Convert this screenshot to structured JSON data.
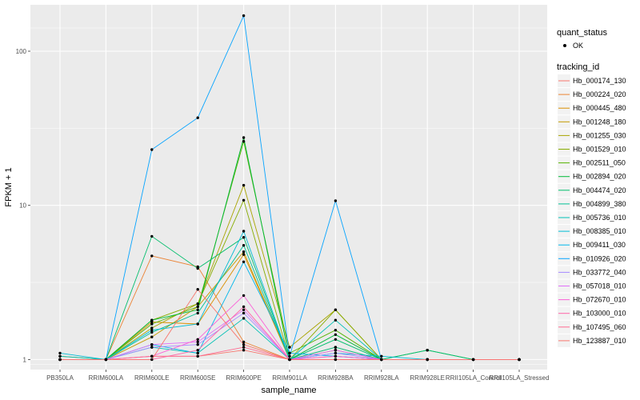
{
  "chart_data": {
    "type": "line",
    "x": [
      "PB350LA",
      "RRIM600LA",
      "RRIM600LE",
      "RRIM600SE",
      "RRIM600PE",
      "RRIM901LA",
      "RRIM928BA",
      "RRIM928LA",
      "RRIM928LE",
      "RRII105LA_Control",
      "RRII105LA_Stressed"
    ],
    "xlabel": "sample_name",
    "ylabel": "FPKM + 1",
    "yscale": "log",
    "ylim": [
      0.86,
      200
    ],
    "yticks": [
      1,
      10,
      100
    ],
    "ytick_labels": [
      "1",
      "10",
      "100"
    ],
    "grid": true,
    "legend_position": "right",
    "marker_legend": {
      "title": "quant_status",
      "label": "OK"
    },
    "color_legend_title": "tracking_id",
    "series": [
      {
        "name": "Hb_000174_130",
        "color": "#F8766D",
        "values": [
          1.0,
          1.0,
          1.05,
          1.05,
          1.15,
          1.0,
          1.05,
          1.0,
          1.0,
          1.0,
          1.0
        ]
      },
      {
        "name": "Hb_000224_020",
        "color": "#EB8335",
        "values": [
          1.0,
          1.0,
          4.7,
          4.0,
          1.3,
          1.0,
          1.0,
          1.0,
          1.0,
          1.0,
          1.0
        ]
      },
      {
        "name": "Hb_000445_480",
        "color": "#DA8F00",
        "values": [
          1.05,
          1.0,
          1.75,
          1.7,
          4.8,
          1.0,
          1.15,
          1.0,
          1.0,
          1.0,
          1.0
        ]
      },
      {
        "name": "Hb_001248_180",
        "color": "#C49A00",
        "values": [
          1.0,
          1.0,
          1.4,
          2.2,
          5.0,
          1.0,
          1.2,
          1.0,
          1.0,
          1.0,
          1.0
        ]
      },
      {
        "name": "Hb_001255_030",
        "color": "#A9A400",
        "values": [
          1.0,
          1.0,
          1.6,
          2.3,
          13.5,
          1.2,
          2.1,
          1.0,
          1.0,
          1.0,
          1.0
        ]
      },
      {
        "name": "Hb_001529_010",
        "color": "#87AC00",
        "values": [
          1.0,
          1.0,
          1.8,
          2.3,
          10.8,
          1.0,
          2.1,
          1.0,
          1.0,
          1.0,
          1.0
        ]
      },
      {
        "name": "Hb_002511_050",
        "color": "#53B400",
        "values": [
          1.0,
          1.0,
          1.7,
          2.2,
          26.0,
          1.1,
          1.55,
          1.0,
          1.0,
          1.0,
          1.0
        ]
      },
      {
        "name": "Hb_002894_020",
        "color": "#00BA38",
        "values": [
          1.0,
          1.0,
          1.8,
          2.1,
          27.5,
          1.0,
          1.45,
          1.0,
          1.15,
          1.0,
          1.0
        ]
      },
      {
        "name": "Hb_004474_020",
        "color": "#00BE6C",
        "values": [
          1.0,
          1.0,
          6.3,
          3.9,
          6.2,
          1.0,
          1.35,
          1.0,
          1.15,
          1.0,
          1.0
        ]
      },
      {
        "name": "Hb_004899_380",
        "color": "#00C094",
        "values": [
          1.0,
          1.0,
          1.5,
          2.0,
          5.5,
          1.0,
          1.2,
          1.0,
          1.0,
          1.0,
          1.0
        ]
      },
      {
        "name": "Hb_005736_010",
        "color": "#00C0B5",
        "values": [
          1.05,
          1.0,
          1.2,
          1.1,
          1.85,
          1.0,
          1.8,
          1.0,
          1.0,
          1.0,
          1.0
        ]
      },
      {
        "name": "Hb_008385_010",
        "color": "#00BCD4",
        "values": [
          1.1,
          1.0,
          1.55,
          1.7,
          6.8,
          1.0,
          1.1,
          1.05,
          1.0,
          1.0,
          1.0
        ]
      },
      {
        "name": "Hb_009411_030",
        "color": "#00B6EB",
        "values": [
          1.0,
          1.0,
          1.25,
          1.1,
          4.3,
          1.1,
          1.05,
          1.0,
          1.0,
          1.0,
          1.0
        ]
      },
      {
        "name": "Hb_010926_020",
        "color": "#06A4FF",
        "values": [
          1.0,
          1.0,
          23.0,
          37.0,
          170.0,
          1.05,
          10.7,
          1.0,
          1.0,
          1.0,
          1.0
        ]
      },
      {
        "name": "Hb_033772_040",
        "color": "#A58AFF",
        "values": [
          1.0,
          1.0,
          1.2,
          1.25,
          2.0,
          1.0,
          1.1,
          1.0,
          1.0,
          1.0,
          1.0
        ]
      },
      {
        "name": "Hb_057018_010",
        "color": "#DF70F8",
        "values": [
          1.0,
          1.0,
          1.25,
          1.3,
          2.1,
          1.0,
          1.15,
          1.0,
          1.0,
          1.0,
          1.0
        ]
      },
      {
        "name": "Hb_072670_010",
        "color": "#FB61D7",
        "values": [
          1.0,
          1.0,
          1.05,
          1.35,
          2.6,
          1.0,
          1.05,
          1.0,
          1.0,
          1.0,
          1.0
        ]
      },
      {
        "name": "Hb_103000_010",
        "color": "#FF66A8",
        "values": [
          1.0,
          1.0,
          1.0,
          1.15,
          2.2,
          1.0,
          1.0,
          1.0,
          1.0,
          1.0,
          1.0
        ]
      },
      {
        "name": "Hb_107495_060",
        "color": "#FF6C91",
        "values": [
          1.0,
          1.0,
          1.05,
          1.05,
          1.2,
          1.0,
          1.0,
          1.0,
          1.0,
          1.0,
          1.0
        ]
      },
      {
        "name": "Hb_123887_010",
        "color": "#F8766D",
        "values": [
          1.0,
          1.0,
          1.0,
          2.85,
          1.25,
          1.0,
          1.0,
          1.0,
          1.0,
          1.0,
          1.0
        ]
      }
    ]
  }
}
